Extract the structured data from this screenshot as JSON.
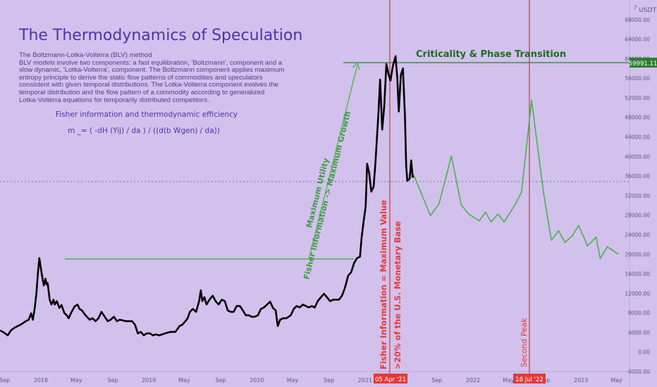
{
  "header": {
    "title": "The Thermodynamics of Speculation",
    "description_lines": [
      "The Boltzmann-Lotka-Volterra (BLV) method",
      "BLV models involve two components: a fast equilibration, 'Boltzmann', component and a",
      "slow dynamic, 'Lotka-Volterra', component. The Boltzmann component applies maximum",
      "entropy principle to derive the static flow patterns of commodities and speculators",
      "consistent with given temporal distributions. The Lotka-Volterra component evolves the",
      "temporal distribution and the flow pattern of a commodity according to generalized",
      "Lotka-Volterra equations for temporarily distributed competitors."
    ],
    "fisher_heading": "Fisher information and thermodynamic efficiency",
    "formula": "m _= ( -dH (Yij) / da ) / ((d(b Wgen) / da))"
  },
  "annotations": {
    "criticality": "Criticality & Phase Transition",
    "arrow_line1": "Maximum Utility",
    "arrow_line2": "Fisher Information -> Maximum Growth",
    "vline1_text": "Fisher Information = Maximum Value",
    "vline2_text": ">20% of the U.S. Monetary Base",
    "vline3_text": "Second Peak",
    "date_label1": "05 Apr '21",
    "date_label2": "18 Jul '22",
    "price_label": "59991.11",
    "currency": "USDT",
    "currency_sup": "7"
  },
  "colors": {
    "background": "#d2c1ec",
    "price_line": "#000000",
    "projection": "#4caf50",
    "marker_red": "#e53935",
    "title": "#4a36a8",
    "crit_text": "#1f6b25"
  },
  "chart_data": {
    "type": "line",
    "title": "The Thermodynamics of Speculation",
    "ylim": [
      -4000,
      72000
    ],
    "y_ticks": [
      -4000,
      0,
      4000,
      8000,
      12000,
      16000,
      20000,
      24000,
      28000,
      32000,
      36000,
      40000,
      44000,
      48000,
      52000,
      56000,
      60000,
      64000,
      68000
    ],
    "y_tick_labels": [
      "-4000.00",
      "0.00",
      "4000.00",
      "8000.00",
      "12000.00",
      "16000.00",
      "20000.00",
      "24000.00",
      "28000.00",
      "32000.00",
      "36000.00",
      "40000.00",
      "44000.00",
      "48000.00",
      "52000.00",
      "56000.00",
      "60000.00",
      "64000.00",
      "68000.00"
    ],
    "x_ticks": [
      "Sep",
      "2018",
      "May",
      "Sep",
      "2019",
      "May",
      "Sep",
      "2020",
      "May",
      "Sep",
      "2021",
      "May",
      "Sep",
      "2022",
      "May",
      "Sep",
      "2023",
      "May"
    ],
    "xlim": [
      "2017-08-16",
      "2023-06-14"
    ],
    "series": [
      {
        "points": [
          [
            "2017-08-17",
            4400
          ],
          [
            "2017-08-31",
            3900
          ],
          [
            "2017-09-11",
            3400
          ],
          [
            "2017-09-22",
            4400
          ],
          [
            "2017-10-05",
            5000
          ],
          [
            "2017-10-25",
            5600
          ],
          [
            "2017-11-12",
            6300
          ],
          [
            "2017-11-21",
            6600
          ],
          [
            "2017-11-29",
            7900
          ],
          [
            "2017-12-05",
            6600
          ],
          [
            "2017-12-11",
            8800
          ],
          [
            "2017-12-17",
            11900
          ],
          [
            "2017-12-22",
            16000
          ],
          [
            "2017-12-27",
            19200
          ],
          [
            "2018-01-04",
            16000
          ],
          [
            "2018-01-11",
            13600
          ],
          [
            "2018-01-17",
            15000
          ],
          [
            "2018-01-20",
            13800
          ],
          [
            "2018-01-24",
            14100
          ],
          [
            "2018-01-31",
            10700
          ],
          [
            "2018-02-06",
            9700
          ],
          [
            "2018-02-13",
            10700
          ],
          [
            "2018-02-17",
            9700
          ],
          [
            "2018-02-24",
            10400
          ],
          [
            "2018-03-05",
            9000
          ],
          [
            "2018-03-12",
            9600
          ],
          [
            "2018-03-22",
            7900
          ],
          [
            "2018-03-30",
            7500
          ],
          [
            "2018-04-05",
            6900
          ],
          [
            "2018-04-15",
            8200
          ],
          [
            "2018-04-25",
            9300
          ],
          [
            "2018-05-05",
            9700
          ],
          [
            "2018-05-12",
            8800
          ],
          [
            "2018-05-20",
            8500
          ],
          [
            "2018-06-01",
            7500
          ],
          [
            "2018-06-15",
            6600
          ],
          [
            "2018-06-25",
            6900
          ],
          [
            "2018-07-05",
            6300
          ],
          [
            "2018-07-15",
            6900
          ],
          [
            "2018-07-25",
            8200
          ],
          [
            "2018-08-05",
            7200
          ],
          [
            "2018-08-15",
            6300
          ],
          [
            "2018-08-25",
            6600
          ],
          [
            "2018-09-05",
            7200
          ],
          [
            "2018-09-15",
            6300
          ],
          [
            "2018-09-25",
            6600
          ],
          [
            "2018-10-15",
            6300
          ],
          [
            "2018-11-05",
            6300
          ],
          [
            "2018-11-15",
            5600
          ],
          [
            "2018-11-25",
            3800
          ],
          [
            "2018-12-05",
            4100
          ],
          [
            "2018-12-15",
            3400
          ],
          [
            "2018-12-25",
            3800
          ],
          [
            "2019-01-05",
            3800
          ],
          [
            "2019-01-15",
            3400
          ],
          [
            "2019-01-25",
            3600
          ],
          [
            "2019-02-05",
            3400
          ],
          [
            "2019-02-25",
            3800
          ],
          [
            "2019-03-15",
            4100
          ],
          [
            "2019-04-01",
            4100
          ],
          [
            "2019-04-15",
            5300
          ],
          [
            "2019-04-25",
            5600
          ],
          [
            "2019-05-05",
            6300
          ],
          [
            "2019-05-12",
            6900
          ],
          [
            "2019-05-20",
            8200
          ],
          [
            "2019-05-30",
            8800
          ],
          [
            "2019-06-10",
            8200
          ],
          [
            "2019-06-20",
            10400
          ],
          [
            "2019-06-26",
            12600
          ],
          [
            "2019-07-01",
            10400
          ],
          [
            "2019-07-08",
            11200
          ],
          [
            "2019-07-15",
            9700
          ],
          [
            "2019-07-25",
            10700
          ],
          [
            "2019-08-05",
            11500
          ],
          [
            "2019-08-15",
            10400
          ],
          [
            "2019-08-25",
            9700
          ],
          [
            "2019-09-05",
            10700
          ],
          [
            "2019-09-15",
            10400
          ],
          [
            "2019-09-25",
            8500
          ],
          [
            "2019-10-05",
            8200
          ],
          [
            "2019-10-15",
            8200
          ],
          [
            "2019-10-25",
            9400
          ],
          [
            "2019-11-05",
            9400
          ],
          [
            "2019-11-15",
            8500
          ],
          [
            "2019-11-25",
            7500
          ],
          [
            "2019-12-05",
            7500
          ],
          [
            "2019-12-15",
            7200
          ],
          [
            "2019-12-25",
            7200
          ],
          [
            "2020-01-05",
            7500
          ],
          [
            "2020-01-15",
            8800
          ],
          [
            "2020-01-25",
            9100
          ],
          [
            "2020-02-05",
            9700
          ],
          [
            "2020-02-15",
            10300
          ],
          [
            "2020-02-25",
            9000
          ],
          [
            "2020-03-05",
            8500
          ],
          [
            "2020-03-12",
            5300
          ],
          [
            "2020-03-20",
            6600
          ],
          [
            "2020-03-30",
            6900
          ],
          [
            "2020-04-10",
            6900
          ],
          [
            "2020-04-25",
            7500
          ],
          [
            "2020-05-05",
            8800
          ],
          [
            "2020-05-15",
            9400
          ],
          [
            "2020-05-25",
            9100
          ],
          [
            "2020-06-05",
            9700
          ],
          [
            "2020-06-15",
            9400
          ],
          [
            "2020-06-25",
            9100
          ],
          [
            "2020-07-05",
            9400
          ],
          [
            "2020-07-15",
            9100
          ],
          [
            "2020-07-25",
            10400
          ],
          [
            "2020-08-05",
            11200
          ],
          [
            "2020-08-15",
            11900
          ],
          [
            "2020-08-25",
            11200
          ],
          [
            "2020-09-05",
            10400
          ],
          [
            "2020-09-15",
            10700
          ],
          [
            "2020-09-25",
            10700
          ],
          [
            "2020-10-05",
            10700
          ],
          [
            "2020-10-15",
            11500
          ],
          [
            "2020-10-25",
            13100
          ],
          [
            "2020-11-05",
            15600
          ],
          [
            "2020-11-15",
            16300
          ],
          [
            "2020-11-25",
            18200
          ],
          [
            "2020-12-05",
            19200
          ],
          [
            "2020-12-15",
            19500
          ],
          [
            "2020-12-20",
            23100
          ],
          [
            "2020-12-27",
            26600
          ],
          [
            "2021-01-03",
            29700
          ],
          [
            "2021-01-08",
            38500
          ],
          [
            "2021-01-15",
            36600
          ],
          [
            "2021-01-22",
            32800
          ],
          [
            "2021-01-30",
            33800
          ],
          [
            "2021-02-05",
            38500
          ],
          [
            "2021-02-15",
            48500
          ],
          [
            "2021-02-21",
            55700
          ],
          [
            "2021-02-28",
            45500
          ],
          [
            "2021-03-07",
            50300
          ],
          [
            "2021-03-14",
            58900
          ],
          [
            "2021-03-21",
            56900
          ],
          [
            "2021-03-28",
            55500
          ],
          [
            "2021-04-05",
            58500
          ],
          [
            "2021-04-14",
            60500
          ],
          [
            "2021-04-20",
            56000
          ],
          [
            "2021-04-25",
            49200
          ],
          [
            "2021-05-02",
            56600
          ],
          [
            "2021-05-09",
            58000
          ],
          [
            "2021-05-16",
            48000
          ],
          [
            "2021-05-20",
            38000
          ],
          [
            "2021-05-24",
            35000
          ],
          [
            "2021-06-01",
            35500
          ],
          [
            "2021-06-06",
            39200
          ],
          [
            "2021-06-11",
            35800
          ],
          [
            "2021-06-16",
            36000
          ]
        ]
      },
      {
        "points": [
          [
            "2021-06-16",
            36000
          ],
          [
            "2021-08-10",
            27900
          ],
          [
            "2021-09-08",
            30300
          ],
          [
            "2021-10-20",
            40100
          ],
          [
            "2021-11-22",
            30100
          ],
          [
            "2021-12-18",
            28200
          ],
          [
            "2022-01-22",
            26800
          ],
          [
            "2022-02-12",
            28600
          ],
          [
            "2022-03-03",
            26600
          ],
          [
            "2022-03-26",
            28200
          ],
          [
            "2022-04-16",
            26600
          ],
          [
            "2022-05-25",
            30300
          ],
          [
            "2022-06-14",
            32700
          ],
          [
            "2022-07-18",
            51500
          ],
          [
            "2022-08-27",
            32700
          ],
          [
            "2022-09-23",
            22800
          ],
          [
            "2022-10-17",
            24800
          ],
          [
            "2022-11-08",
            22400
          ],
          [
            "2022-12-03",
            23800
          ],
          [
            "2022-12-24",
            25900
          ],
          [
            "2023-01-23",
            21700
          ],
          [
            "2023-02-21",
            23500
          ],
          [
            "2023-03-07",
            19100
          ],
          [
            "2023-03-31",
            21500
          ],
          [
            "2023-05-08",
            20000
          ]
        ]
      }
    ]
  }
}
